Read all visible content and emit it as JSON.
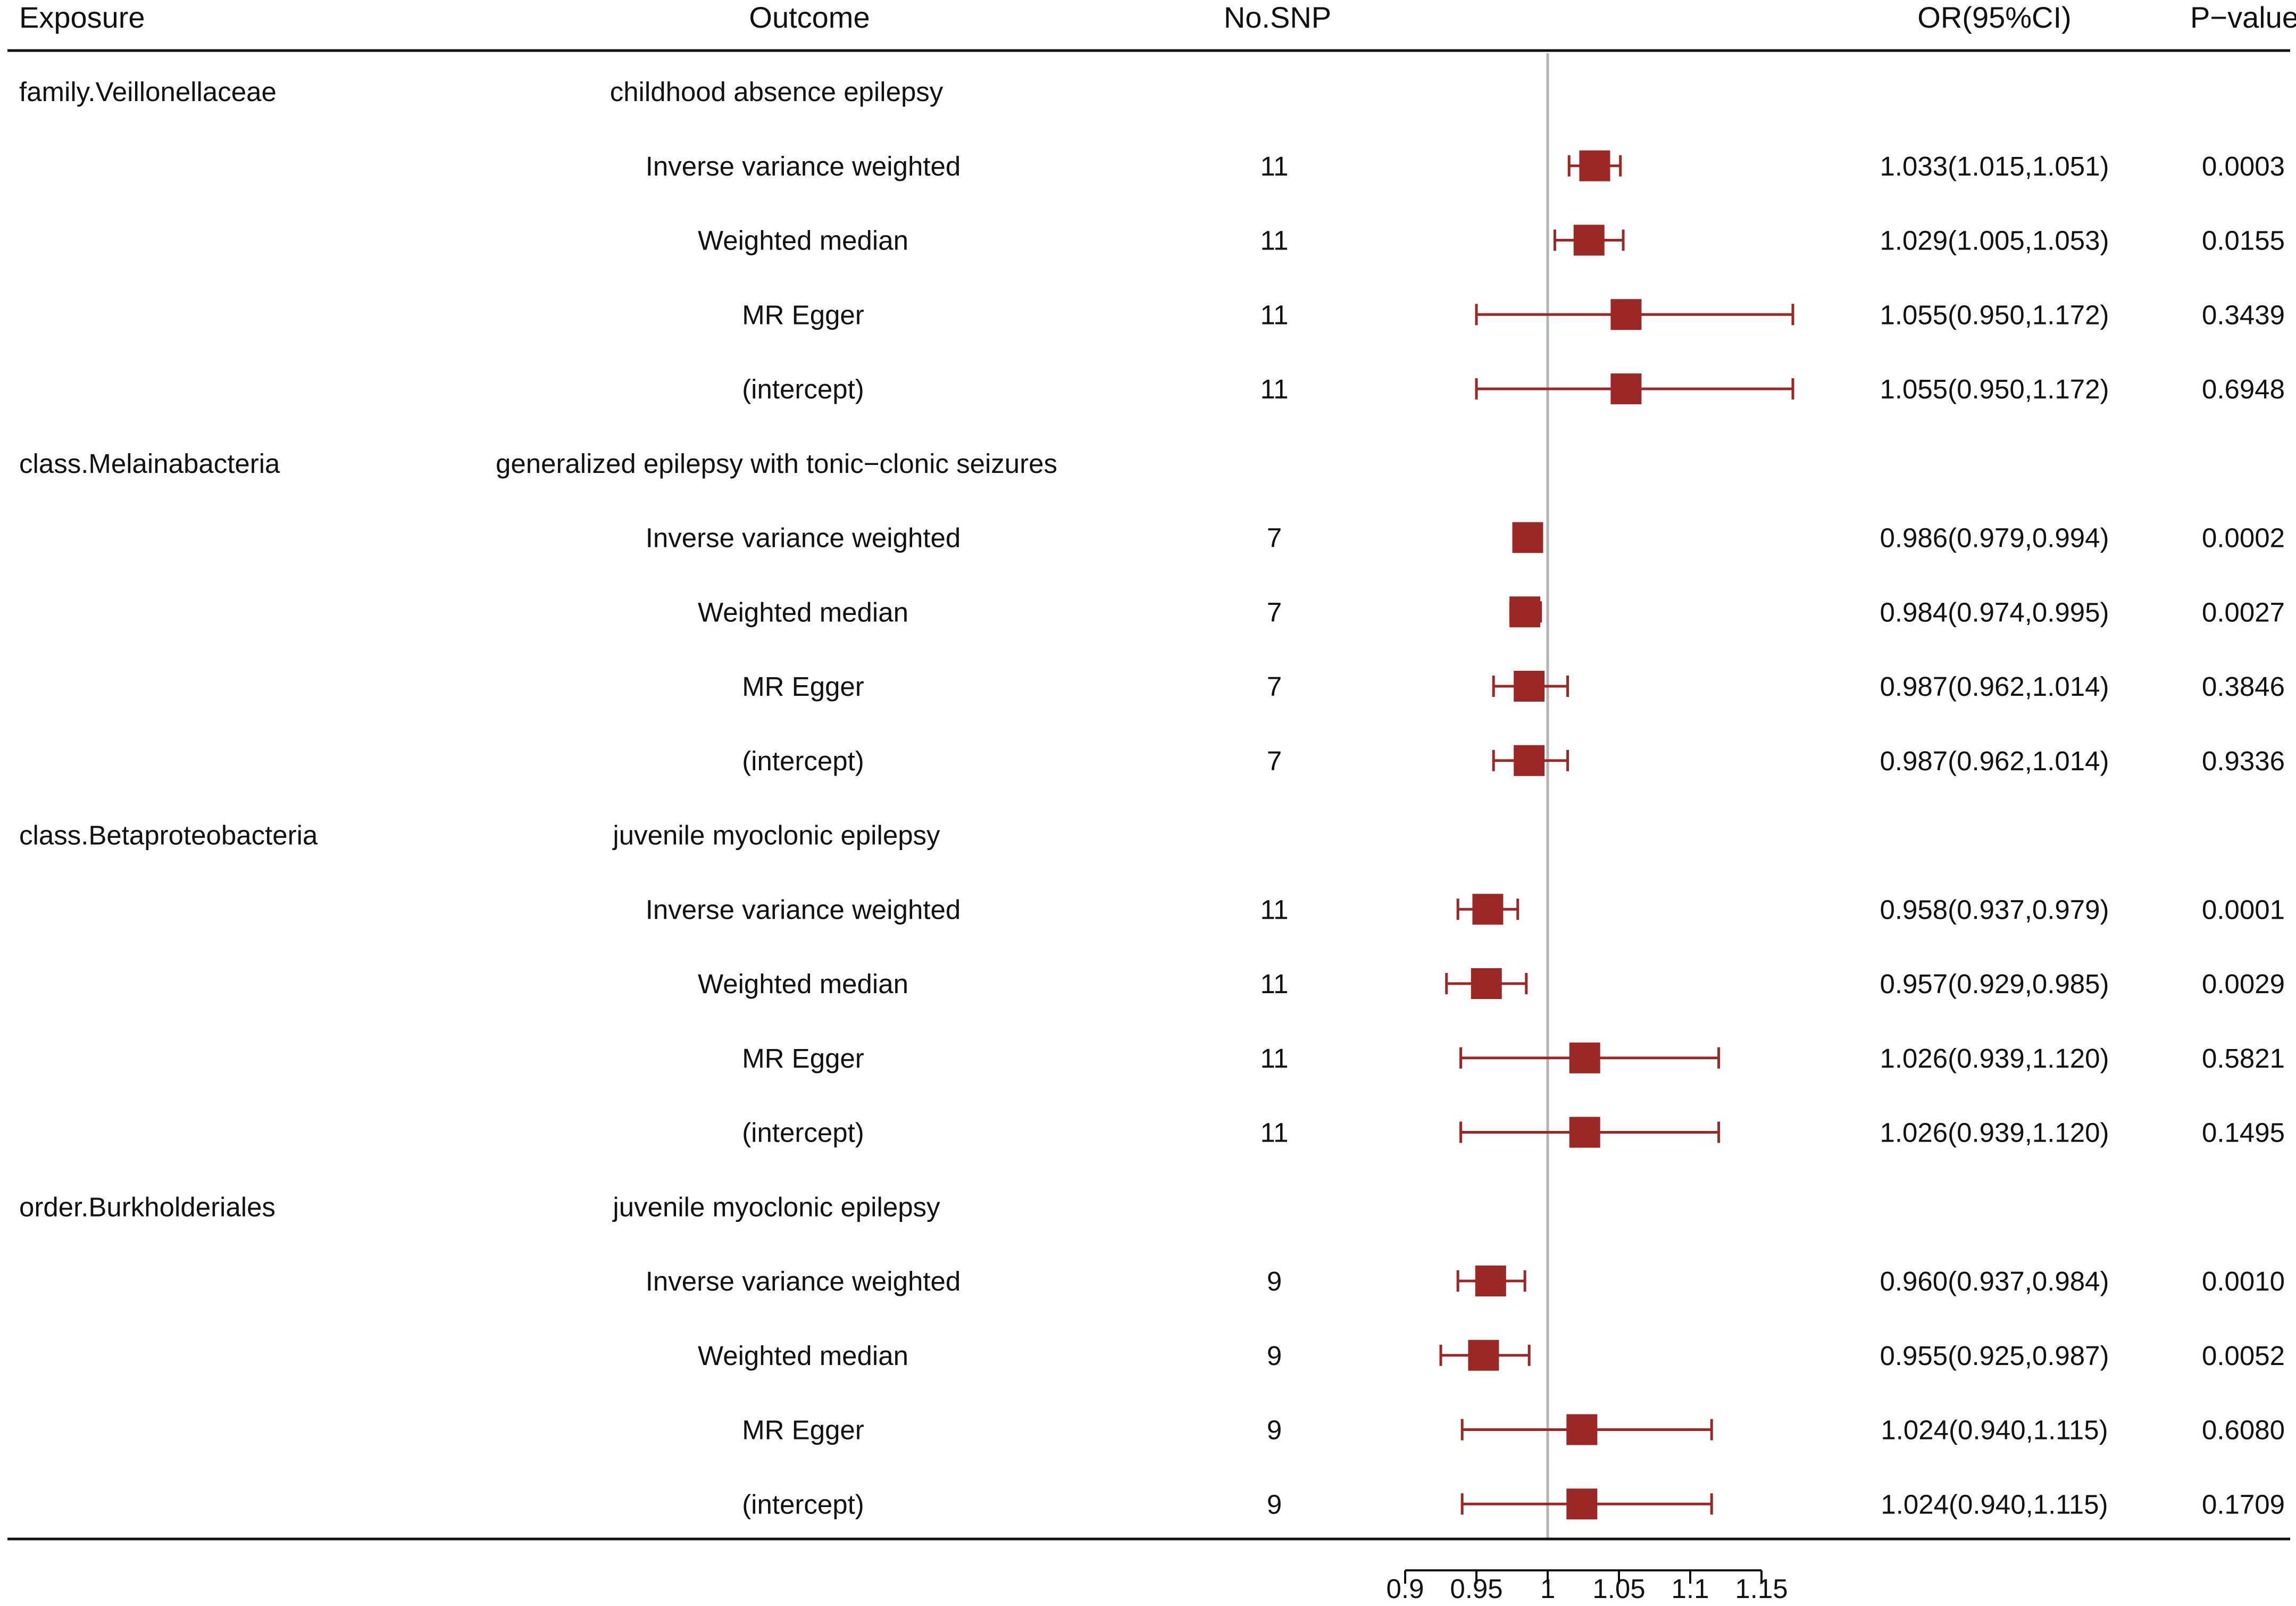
{
  "chart_data": {
    "type": "forest",
    "headers": {
      "exposure": "Exposure",
      "outcome": "Outcome",
      "nsnp": "No.SNP",
      "or": "OR(95%CI)",
      "p": "P−value"
    },
    "groups": [
      {
        "exposure": "family.Veillonellaceae",
        "outcome": "childhood absence epilepsy",
        "rows": [
          {
            "method": "Inverse variance weighted",
            "nsnp": "11",
            "or": 1.033,
            "lo": 1.015,
            "hi": 1.051,
            "or_text": "1.033(1.015,1.051)",
            "p": "0.0003"
          },
          {
            "method": "Weighted median",
            "nsnp": "11",
            "or": 1.029,
            "lo": 1.005,
            "hi": 1.053,
            "or_text": "1.029(1.005,1.053)",
            "p": "0.0155"
          },
          {
            "method": "MR Egger",
            "nsnp": "11",
            "or": 1.055,
            "lo": 0.95,
            "hi": 1.172,
            "or_text": "1.055(0.950,1.172)",
            "p": "0.3439"
          },
          {
            "method": "(intercept)",
            "nsnp": "11",
            "or": 1.055,
            "lo": 0.95,
            "hi": 1.172,
            "or_text": "1.055(0.950,1.172)",
            "p": "0.6948"
          }
        ]
      },
      {
        "exposure": "class.Melainabacteria",
        "outcome": "generalized epilepsy with tonic−clonic seizures",
        "rows": [
          {
            "method": "Inverse variance weighted",
            "nsnp": "7",
            "or": 0.986,
            "lo": 0.979,
            "hi": 0.994,
            "or_text": "0.986(0.979,0.994)",
            "p": "0.0002"
          },
          {
            "method": "Weighted median",
            "nsnp": "7",
            "or": 0.984,
            "lo": 0.974,
            "hi": 0.995,
            "or_text": "0.984(0.974,0.995)",
            "p": "0.0027"
          },
          {
            "method": "MR Egger",
            "nsnp": "7",
            "or": 0.987,
            "lo": 0.962,
            "hi": 1.014,
            "or_text": "0.987(0.962,1.014)",
            "p": "0.3846"
          },
          {
            "method": "(intercept)",
            "nsnp": "7",
            "or": 0.987,
            "lo": 0.962,
            "hi": 1.014,
            "or_text": "0.987(0.962,1.014)",
            "p": "0.9336"
          }
        ]
      },
      {
        "exposure": "class.Betaproteobacteria",
        "outcome": "juvenile myoclonic epilepsy",
        "rows": [
          {
            "method": "Inverse variance weighted",
            "nsnp": "11",
            "or": 0.958,
            "lo": 0.937,
            "hi": 0.979,
            "or_text": "0.958(0.937,0.979)",
            "p": "0.0001"
          },
          {
            "method": "Weighted median",
            "nsnp": "11",
            "or": 0.957,
            "lo": 0.929,
            "hi": 0.985,
            "or_text": "0.957(0.929,0.985)",
            "p": "0.0029"
          },
          {
            "method": "MR Egger",
            "nsnp": "11",
            "or": 1.026,
            "lo": 0.939,
            "hi": 1.12,
            "or_text": "1.026(0.939,1.120)",
            "p": "0.5821"
          },
          {
            "method": "(intercept)",
            "nsnp": "11",
            "or": 1.026,
            "lo": 0.939,
            "hi": 1.12,
            "or_text": "1.026(0.939,1.120)",
            "p": "0.1495"
          }
        ]
      },
      {
        "exposure": "order.Burkholderiales",
        "outcome": "juvenile myoclonic epilepsy",
        "rows": [
          {
            "method": "Inverse variance weighted",
            "nsnp": "9",
            "or": 0.96,
            "lo": 0.937,
            "hi": 0.984,
            "or_text": "0.960(0.937,0.984)",
            "p": "0.0010"
          },
          {
            "method": "Weighted median",
            "nsnp": "9",
            "or": 0.955,
            "lo": 0.925,
            "hi": 0.987,
            "or_text": "0.955(0.925,0.987)",
            "p": "0.0052"
          },
          {
            "method": "MR Egger",
            "nsnp": "9",
            "or": 1.024,
            "lo": 0.94,
            "hi": 1.115,
            "or_text": "1.024(0.940,1.115)",
            "p": "0.6080"
          },
          {
            "method": "(intercept)",
            "nsnp": "9",
            "or": 1.024,
            "lo": 0.94,
            "hi": 1.115,
            "or_text": "1.024(0.940,1.115)",
            "p": "0.1709"
          }
        ]
      }
    ],
    "x_axis": {
      "ticks": [
        0.9,
        0.95,
        1,
        1.05,
        1.1,
        1.15
      ],
      "tick_labels": [
        "0.9",
        "0.95",
        "1",
        "1.05",
        "1.1",
        "1.15"
      ],
      "reference": 1
    },
    "colors": {
      "marker": "#9b2726",
      "reference_line": "#b3b3b3",
      "axis": "#111111"
    }
  }
}
